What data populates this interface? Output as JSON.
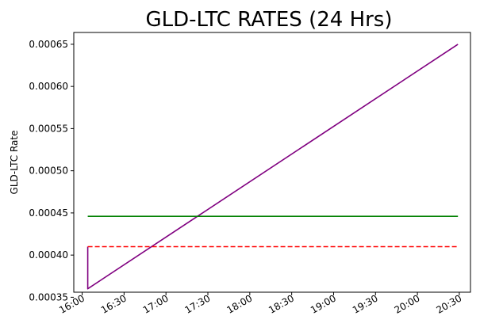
{
  "chart_data": {
    "type": "line",
    "title": "GLD-LTC RATES (24 Hrs)",
    "xlabel": "",
    "ylabel": "GLD-LTC Rate",
    "x_tick_labels": [
      "16:00",
      "16:30",
      "17:00",
      "17:30",
      "18:00",
      "18:30",
      "19:00",
      "19:30",
      "20:00",
      "20:30"
    ],
    "y_tick_labels": [
      "0.00035",
      "0.00040",
      "0.00045",
      "0.00050",
      "0.00055",
      "0.00060",
      "0.00065"
    ],
    "xlim": [
      "15:54",
      "20:38"
    ],
    "ylim": [
      0.000356,
      0.000664
    ],
    "grid": false,
    "series": [
      {
        "color": "#800080",
        "style": "solid",
        "x": [
          "16:04",
          "16:04",
          "20:29"
        ],
        "y": [
          0.00041,
          0.00036,
          0.00065
        ]
      },
      {
        "color": "#008000",
        "style": "solid",
        "x": [
          "16:04",
          "20:29"
        ],
        "y": [
          0.000446,
          0.000446
        ]
      },
      {
        "color": "#ff0000",
        "style": "dashed",
        "x": [
          "16:04",
          "20:29"
        ],
        "y": [
          0.00041,
          0.00041
        ]
      }
    ]
  }
}
